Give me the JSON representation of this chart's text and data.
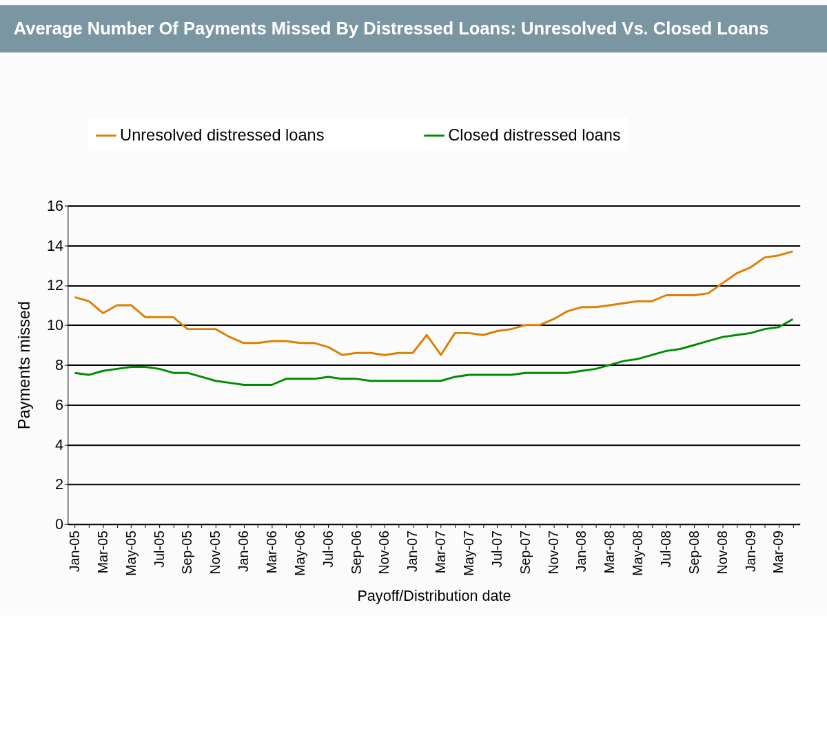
{
  "chart_data": {
    "type": "line",
    "title": "Average Number Of Payments Missed By Distressed Loans: Unresolved Vs. Closed Loans",
    "xlabel": "Payoff/Distribution date",
    "ylabel": "Payments missed",
    "categories": [
      "Jan-05",
      null,
      "Mar-05",
      null,
      "May-05",
      null,
      "Jul-05",
      null,
      "Sep-05",
      null,
      "Nov-05",
      null,
      "Jan-06",
      null,
      "Mar-06",
      null,
      "May-06",
      null,
      "Jul-06",
      null,
      "Sep-06",
      null,
      "Nov-06",
      null,
      "Jan-07",
      null,
      "Mar-07",
      null,
      "May-07",
      null,
      "Jul-07",
      null,
      "Sep-07",
      null,
      "Nov-07",
      null,
      "Jan-08",
      null,
      "Mar-08",
      null,
      "May-08",
      null,
      "Jul-08",
      null,
      "Sep-08",
      null,
      "Nov-08",
      null,
      "Jan-09",
      null,
      "Mar-09",
      null
    ],
    "series": [
      {
        "name": "Unresolved distressed loans",
        "color": "#dd8000",
        "values": [
          11.4,
          11.2,
          10.6,
          11.0,
          11.0,
          10.4,
          10.4,
          10.4,
          9.8,
          9.8,
          9.8,
          9.4,
          9.1,
          9.1,
          9.2,
          9.2,
          9.1,
          9.1,
          8.9,
          8.5,
          8.6,
          8.6,
          8.5,
          8.6,
          8.6,
          9.5,
          8.5,
          9.6,
          9.6,
          9.5,
          9.7,
          9.8,
          10.0,
          10.0,
          10.3,
          10.7,
          10.9,
          10.9,
          11.0,
          11.1,
          11.2,
          11.2,
          11.5,
          11.5,
          11.5,
          11.6,
          12.1,
          12.6,
          12.9,
          13.4,
          13.5,
          13.7
        ]
      },
      {
        "name": "Closed distressed loans",
        "color": "#008c00",
        "values": [
          7.6,
          7.5,
          7.7,
          7.8,
          7.9,
          7.9,
          7.8,
          7.6,
          7.6,
          7.4,
          7.2,
          7.1,
          7.0,
          7.0,
          7.0,
          7.3,
          7.3,
          7.3,
          7.4,
          7.3,
          7.3,
          7.2,
          7.2,
          7.2,
          7.2,
          7.2,
          7.2,
          7.4,
          7.5,
          7.5,
          7.5,
          7.5,
          7.6,
          7.6,
          7.6,
          7.6,
          7.7,
          7.8,
          8.0,
          8.2,
          8.3,
          8.5,
          8.7,
          8.8,
          9.0,
          9.2,
          9.4,
          9.5,
          9.6,
          9.8,
          9.9,
          10.3
        ]
      }
    ],
    "ylim": [
      0,
      16
    ],
    "yticks": [
      0,
      2,
      4,
      6,
      8,
      10,
      12,
      14,
      16
    ],
    "grid": "y",
    "legend": "top",
    "marker": "none",
    "line_style": "solid"
  }
}
